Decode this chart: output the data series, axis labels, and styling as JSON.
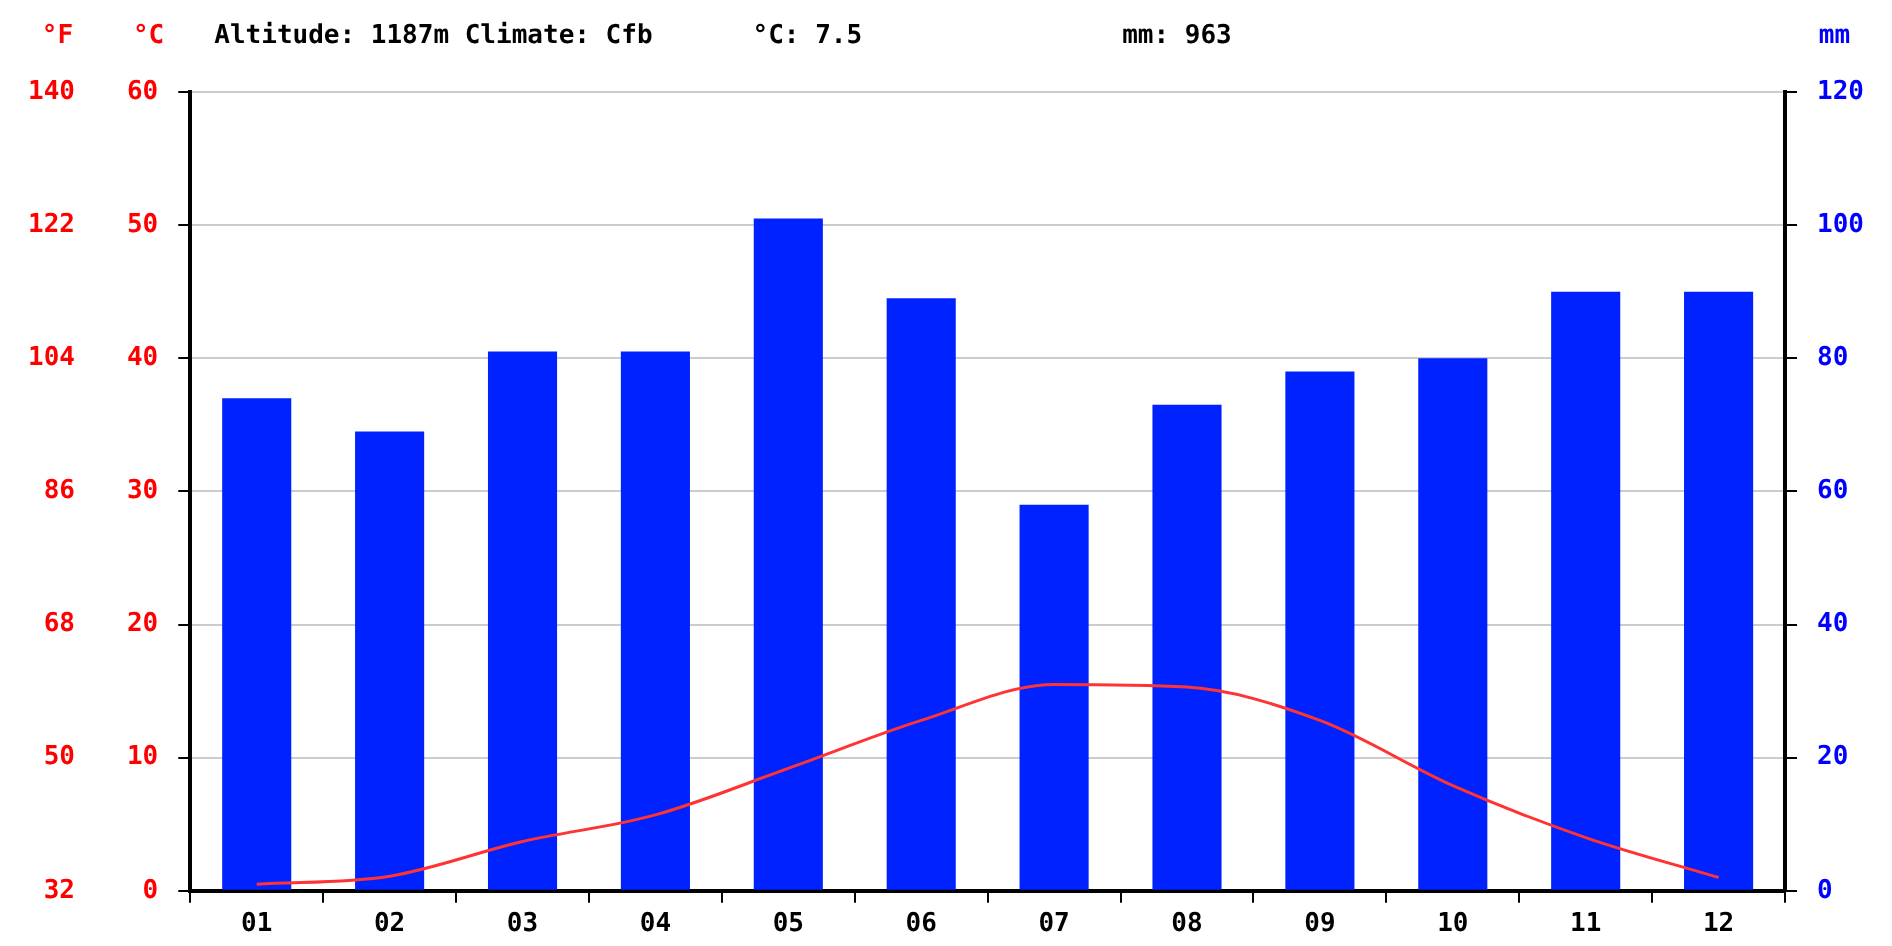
{
  "chart_data": {
    "type": "bar",
    "title": "Altitude: 1187m Climate: Cfb",
    "annotations": [
      "°C: 7.5",
      "mm: 963"
    ],
    "categories": [
      "01",
      "02",
      "03",
      "04",
      "05",
      "06",
      "07",
      "08",
      "09",
      "10",
      "11",
      "12"
    ],
    "series": [
      {
        "axis": "y2",
        "color": "#0022ff",
        "values": [
          74,
          69,
          81,
          81,
          101,
          89,
          58,
          73,
          78,
          80,
          90,
          90
        ]
      },
      {
        "type": "line",
        "axis": "y",
        "color": "#ff3333",
        "values": [
          0.5,
          1.1,
          3.7,
          5.7,
          9.2,
          12.8,
          15.5,
          15.3,
          12.8,
          7.9,
          4.0,
          1.0
        ]
      }
    ],
    "ylabel": "°C",
    "ylim": [
      0,
      60
    ],
    "yticks": [
      0,
      10,
      20,
      30,
      40,
      50,
      60
    ],
    "y2label": "mm",
    "y2lim": [
      0,
      120
    ],
    "y2ticks": [
      0,
      20,
      40,
      60,
      80,
      100,
      120
    ],
    "y3label": "°F",
    "y3lim": [
      32,
      140
    ],
    "y3ticks": [
      32,
      50,
      68,
      86,
      104,
      122,
      140
    ],
    "grid": "y",
    "legend": false,
    "marker": "none"
  }
}
